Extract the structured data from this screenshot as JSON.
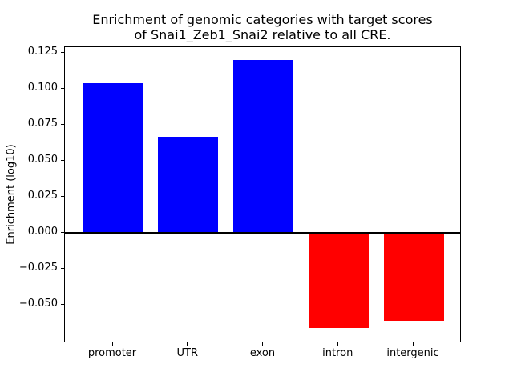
{
  "figure": {
    "background": "#ffffff",
    "text_color": "#000000"
  },
  "chart_data": {
    "type": "bar",
    "title": "Enrichment of genomic categories with target scores\nof Snai1_Zeb1_Snai2 relative to all CRE.",
    "xlabel": "",
    "ylabel": "Enrichment (log10)",
    "categories": [
      "promoter",
      "UTR",
      "exon",
      "intron",
      "intergenic"
    ],
    "values": [
      0.104,
      0.067,
      0.12,
      -0.066,
      -0.061
    ],
    "bar_colors": [
      "#0000ff",
      "#0000ff",
      "#0000ff",
      "#ff0000",
      "#ff0000"
    ],
    "positive_color": "#0000ff",
    "negative_color": "#ff0000",
    "bar_width": 0.8,
    "xlim": [
      -0.64,
      4.64
    ],
    "ylim": [
      -0.0765,
      0.129
    ],
    "yticks": [
      0.125,
      0.1,
      0.075,
      0.05,
      0.025,
      0.0,
      -0.025,
      -0.05
    ],
    "ytick_labels": [
      "0.125",
      "0.100",
      "0.075",
      "0.050",
      "0.025",
      "0.000",
      "−0.025",
      "−0.050"
    ],
    "grid": false,
    "legend": null,
    "zero_line": true,
    "axis_color": "#000000"
  }
}
